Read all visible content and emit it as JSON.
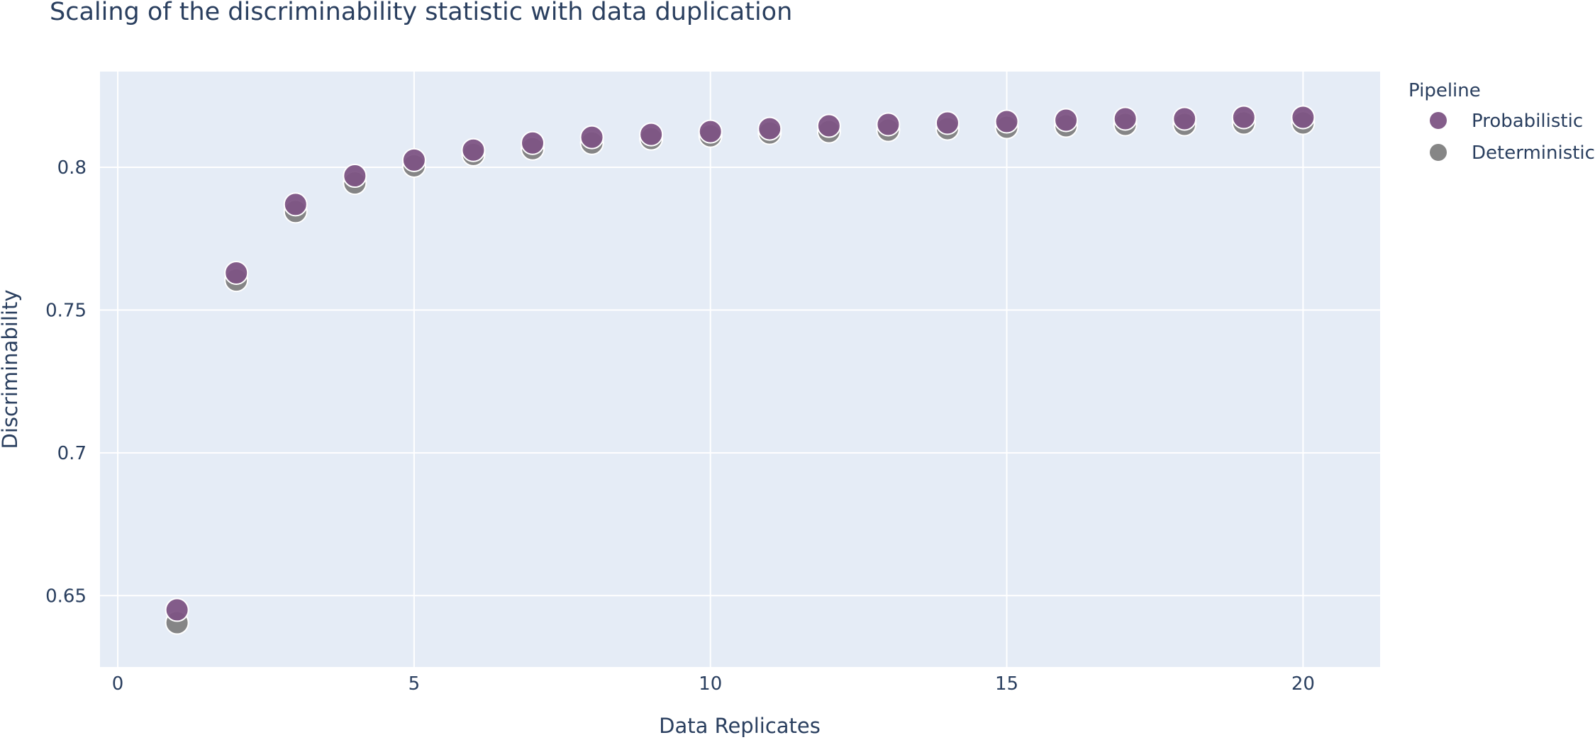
{
  "chart_data": {
    "type": "scatter",
    "title": "Scaling of the discriminability statistic with data duplication",
    "xlabel": "Data Replicates",
    "ylabel": "Discriminability",
    "xlim": [
      -0.3,
      21.3
    ],
    "ylim": [
      0.625,
      0.8335
    ],
    "x_ticks": [
      0,
      5,
      10,
      15,
      20
    ],
    "x_tick_labels": [
      "0",
      "5",
      "10",
      "15",
      "20"
    ],
    "y_ticks": [
      0.65,
      0.7,
      0.75,
      0.8
    ],
    "y_tick_labels": [
      "0.65",
      "0.7",
      "0.75",
      "0.8"
    ],
    "grid": true,
    "legend": {
      "title": "Pipeline",
      "position": "right"
    },
    "x": [
      1,
      2,
      3,
      4,
      5,
      6,
      7,
      8,
      9,
      10,
      11,
      12,
      13,
      14,
      15,
      16,
      17,
      18,
      19,
      20
    ],
    "series": [
      {
        "name": "Deterministic",
        "color": "#7f7f7f",
        "values": [
          0.6405,
          0.7605,
          0.7845,
          0.7945,
          0.8005,
          0.8045,
          0.8065,
          0.8085,
          0.81,
          0.811,
          0.812,
          0.8125,
          0.813,
          0.8135,
          0.814,
          0.8145,
          0.815,
          0.815,
          0.8155,
          0.8155
        ]
      },
      {
        "name": "Probabilistic",
        "color": "#7d5484",
        "values": [
          0.645,
          0.763,
          0.787,
          0.797,
          0.8025,
          0.806,
          0.8085,
          0.8105,
          0.8115,
          0.8125,
          0.8135,
          0.8145,
          0.815,
          0.8155,
          0.816,
          0.8165,
          0.817,
          0.817,
          0.8175,
          0.8175
        ]
      }
    ],
    "legend_order": [
      "Probabilistic",
      "Deterministic"
    ]
  }
}
